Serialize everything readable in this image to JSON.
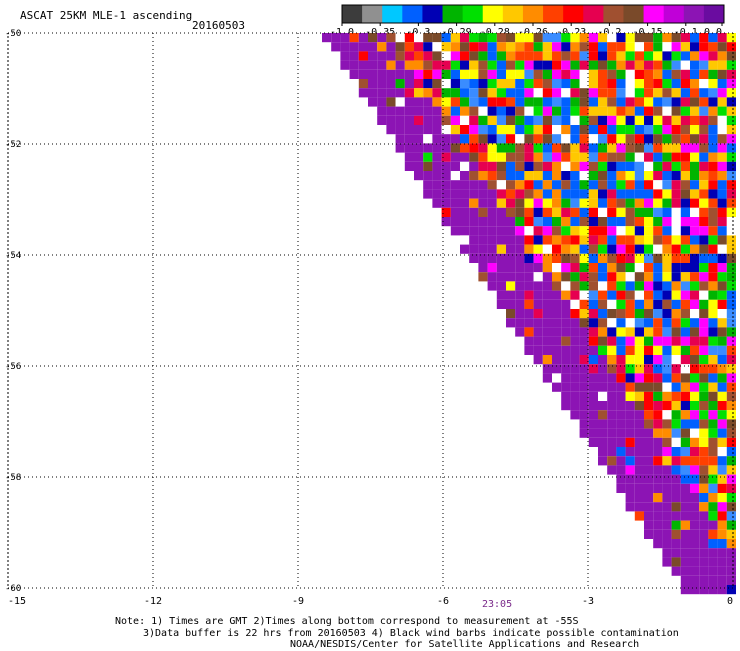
{
  "header": {
    "title": "ASCAT 25KM MLE-1 ascending",
    "date": "20160503"
  },
  "colorbar": {
    "labels": [
      "-1.0",
      "-0.35",
      "-0.3",
      "-0.29",
      "-0.28",
      "-0.26",
      "-0.23",
      "-0.2",
      "-0.15",
      "-0.1",
      "0.0"
    ],
    "colors": [
      "#3c3c3c",
      "#909090",
      "#00c8ff",
      "#0060ff",
      "#0000b4",
      "#00b400",
      "#00e000",
      "#ffff00",
      "#ffc800",
      "#ff8c00",
      "#ff4000",
      "#ff0000",
      "#e60050",
      "#a05030",
      "#7a4a2a",
      "#ff00ff",
      "#c000d8",
      "#8c14b4",
      "#6a0ca0"
    ]
  },
  "map": {
    "y_axis_labels": [
      "-50",
      "-52",
      "-54",
      "-56",
      "-58",
      "-60"
    ],
    "x_axis_labels": [
      "-15",
      "-12",
      "-9",
      "-6",
      "-3",
      "0"
    ],
    "lat_range": [
      -60,
      -50
    ],
    "lon_range": [
      -15,
      0
    ],
    "swath_fill_colors": [
      "#0060ff",
      "#0060ff",
      "#3a8cff",
      "#0000b4",
      "#00b400",
      "#00e000",
      "#ffff00",
      "#ffc800",
      "#ff8c00",
      "#ff0000",
      "#ff4000",
      "#e60050",
      "#ffffff",
      "#7a4a2a",
      "#a05030",
      "#ff00ff"
    ],
    "edge_color": "#8c14b4",
    "time_label": "23:05"
  },
  "notes": {
    "line1": "Note: 1) Times are GMT 2)Times along bottom correspond to measurement at -55S",
    "line2": "3)Data buffer is 22 hrs from 20160503 4) Black wind barbs indicate possible contamination",
    "line3": "NOAA/NESDIS/Center for Satellite Applications and Research"
  }
}
